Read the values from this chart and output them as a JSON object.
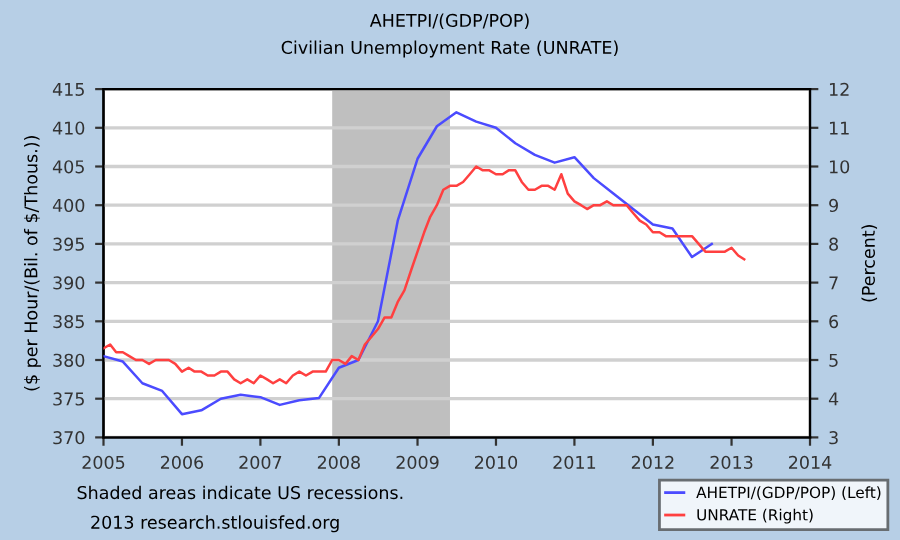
{
  "chart_data": {
    "type": "line",
    "title": "AHETPI/(GDP/POP)",
    "subtitle": "Civilian Unemployment Rate (UNRATE)",
    "ylabel": "($ per Hour/(Bil. of $/Thous.))",
    "y2label": "(Percent)",
    "annotations": [
      "Shaded areas indicate US recessions.",
      "2013 research.stlouisfed.org"
    ],
    "series": [
      {
        "name": "AHETPI/(GDP/POP) (Left)",
        "color": "#4b4bff",
        "x": [
          "2005-01",
          "2005-04",
          "2005-07",
          "2005-10",
          "2006-01",
          "2006-04",
          "2006-07",
          "2006-10",
          "2007-01",
          "2007-04",
          "2007-07",
          "2007-10",
          "2008-01",
          "2008-04",
          "2008-07",
          "2008-10",
          "2009-01",
          "2009-04",
          "2009-07",
          "2009-10",
          "2010-01",
          "2010-04",
          "2010-07",
          "2010-10",
          "2011-01",
          "2011-04",
          "2011-07",
          "2011-10",
          "2012-01",
          "2012-04",
          "2012-07",
          "2012-10"
        ],
        "values": [
          380.5,
          379.8,
          377,
          376,
          373,
          373.5,
          375,
          375.5,
          375.2,
          374.2,
          374.8,
          375.1,
          379,
          380,
          385,
          398,
          406,
          410.2,
          412,
          410.8,
          410,
          408,
          406.5,
          405.5,
          406.2,
          403.5,
          401.5,
          399.5,
          397.5,
          397,
          393.3,
          395
        ]
      },
      {
        "name": "UNRATE (Right)",
        "color": "#ff4040",
        "axis": "y2",
        "x": [
          "2005-01",
          "2005-02",
          "2005-03",
          "2005-04",
          "2005-05",
          "2005-06",
          "2005-07",
          "2005-08",
          "2005-09",
          "2005-10",
          "2005-11",
          "2005-12",
          "2006-01",
          "2006-02",
          "2006-03",
          "2006-04",
          "2006-05",
          "2006-06",
          "2006-07",
          "2006-08",
          "2006-09",
          "2006-10",
          "2006-11",
          "2006-12",
          "2007-01",
          "2007-02",
          "2007-03",
          "2007-04",
          "2007-05",
          "2007-06",
          "2007-07",
          "2007-08",
          "2007-09",
          "2007-10",
          "2007-11",
          "2007-12",
          "2008-01",
          "2008-02",
          "2008-03",
          "2008-04",
          "2008-05",
          "2008-06",
          "2008-07",
          "2008-08",
          "2008-09",
          "2008-10",
          "2008-11",
          "2008-12",
          "2009-01",
          "2009-02",
          "2009-03",
          "2009-04",
          "2009-05",
          "2009-06",
          "2009-07",
          "2009-08",
          "2009-09",
          "2009-10",
          "2009-11",
          "2009-12",
          "2010-01",
          "2010-02",
          "2010-03",
          "2010-04",
          "2010-05",
          "2010-06",
          "2010-07",
          "2010-08",
          "2010-09",
          "2010-10",
          "2010-11",
          "2010-12",
          "2011-01",
          "2011-02",
          "2011-03",
          "2011-04",
          "2011-05",
          "2011-06",
          "2011-07",
          "2011-08",
          "2011-09",
          "2011-10",
          "2011-11",
          "2011-12",
          "2012-01",
          "2012-02",
          "2012-03",
          "2012-04",
          "2012-05",
          "2012-06",
          "2012-07",
          "2012-08",
          "2012-09",
          "2012-10",
          "2012-11",
          "2012-12",
          "2013-01",
          "2013-02",
          "2013-03"
        ],
        "values": [
          5.3,
          5.4,
          5.2,
          5.2,
          5.1,
          5.0,
          5.0,
          4.9,
          5.0,
          5.0,
          5.0,
          4.9,
          4.7,
          4.8,
          4.7,
          4.7,
          4.6,
          4.6,
          4.7,
          4.7,
          4.5,
          4.4,
          4.5,
          4.4,
          4.6,
          4.5,
          4.4,
          4.5,
          4.4,
          4.6,
          4.7,
          4.6,
          4.7,
          4.7,
          4.7,
          5.0,
          5.0,
          4.9,
          5.1,
          5.0,
          5.4,
          5.6,
          5.8,
          6.1,
          6.1,
          6.5,
          6.8,
          7.3,
          7.8,
          8.3,
          8.7,
          9.0,
          9.4,
          9.5,
          9.5,
          9.6,
          9.8,
          10.0,
          9.9,
          9.9,
          9.8,
          9.8,
          9.9,
          9.9,
          9.6,
          9.4,
          9.4,
          9.5,
          9.5,
          9.4,
          9.8,
          9.3,
          9.1,
          9.0,
          8.9,
          9.0,
          9.0,
          9.1,
          9.0,
          9.0,
          9.0,
          8.8,
          8.6,
          8.5,
          8.3,
          8.3,
          8.2,
          8.2,
          8.2,
          8.2,
          8.2,
          8.0,
          7.8,
          7.8,
          7.8,
          7.8,
          7.9,
          7.7,
          7.6
        ]
      }
    ],
    "bands": [
      {
        "axis": "x",
        "from": "2007-12",
        "to": "2009-06",
        "color": "#bfbfbf"
      }
    ],
    "xlim": [
      "2005",
      "2014"
    ],
    "xticks": [
      "2005",
      "2006",
      "2007",
      "2008",
      "2009",
      "2010",
      "2011",
      "2012",
      "2013",
      "2014"
    ],
    "ylim": [
      370,
      415
    ],
    "yticks": [
      370,
      375,
      380,
      385,
      390,
      395,
      400,
      405,
      410,
      415
    ],
    "y2lim": [
      3,
      12
    ],
    "y2ticks": [
      3,
      4,
      5,
      6,
      7,
      8,
      9,
      10,
      11,
      12
    ],
    "grid": "y",
    "legend": "bottom right"
  }
}
